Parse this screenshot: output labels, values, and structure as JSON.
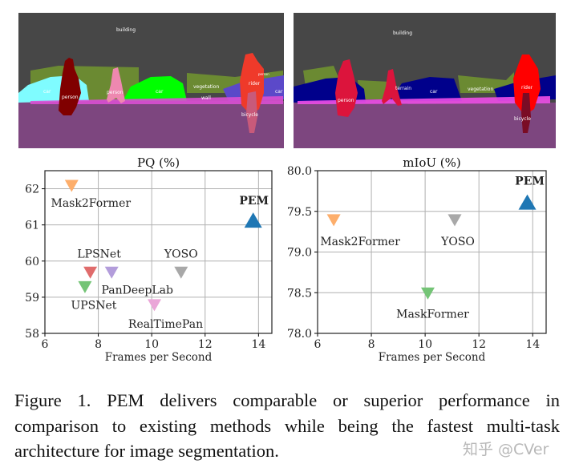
{
  "segmentation_images": {
    "left": {
      "labels": [
        "building",
        "car",
        "person",
        "person",
        "car",
        "vegetation",
        "wall",
        "rider",
        "person",
        "car",
        "bicycle"
      ]
    },
    "right": {
      "labels": [
        "building",
        "terrain",
        "car",
        "vegetation",
        "person",
        "rider",
        "bicycle"
      ]
    }
  },
  "chart_data": [
    {
      "type": "scatter",
      "title": "PQ (%)",
      "xlabel": "Frames per Second",
      "ylabel": "",
      "xlim": [
        6,
        14.5
      ],
      "ylim": [
        58,
        62.5
      ],
      "xticks": [
        "6",
        "8",
        "10",
        "12",
        "14"
      ],
      "yticks": [
        "58",
        "59",
        "60",
        "61",
        "62"
      ],
      "grid": true,
      "points": [
        {
          "name": "Mask2Former",
          "x": 7.0,
          "y": 62.1,
          "marker": "triangle-down",
          "color": "#fdae6b"
        },
        {
          "name": "PEM",
          "x": 13.8,
          "y": 61.1,
          "marker": "triangle-up",
          "color": "#1f77b4",
          "bold": true
        },
        {
          "name": "LPSNet",
          "x": 7.7,
          "y": 59.7,
          "marker": "triangle-down",
          "color": "#e06c6c"
        },
        {
          "name": "PanDeepLab",
          "x": 8.5,
          "y": 59.7,
          "marker": "triangle-down",
          "color": "#b39ddb"
        },
        {
          "name": "YOSO",
          "x": 11.1,
          "y": 59.7,
          "marker": "triangle-down",
          "color": "#a8a8a8"
        },
        {
          "name": "UPSNet",
          "x": 7.5,
          "y": 59.3,
          "marker": "triangle-down",
          "color": "#74c476"
        },
        {
          "name": "RealTimePan",
          "x": 10.1,
          "y": 58.8,
          "marker": "triangle-down",
          "color": "#eaa6d8"
        }
      ]
    },
    {
      "type": "scatter",
      "title": "mIoU (%)",
      "xlabel": "Frames per Second",
      "ylabel": "",
      "xlim": [
        6,
        14.5
      ],
      "ylim": [
        78.0,
        80.0
      ],
      "xticks": [
        "6",
        "8",
        "10",
        "12",
        "14"
      ],
      "yticks": [
        "78.0",
        "78.5",
        "79.0",
        "79.5",
        "80.0"
      ],
      "grid": true,
      "points": [
        {
          "name": "Mask2Former",
          "x": 6.6,
          "y": 79.4,
          "marker": "triangle-down",
          "color": "#fdae6b"
        },
        {
          "name": "YOSO",
          "x": 11.1,
          "y": 79.4,
          "marker": "triangle-down",
          "color": "#a8a8a8"
        },
        {
          "name": "MaskFormer",
          "x": 10.1,
          "y": 78.5,
          "marker": "triangle-down",
          "color": "#74c476"
        },
        {
          "name": "PEM",
          "x": 13.8,
          "y": 79.6,
          "marker": "triangle-up",
          "color": "#1f77b4",
          "bold": true
        }
      ]
    }
  ],
  "caption": {
    "lines": [
      "Figure 1.  PEM delivers comparable or superior performance in",
      "comparison to existing methods while being the fastest multi-task",
      "architecture for image segmentation."
    ]
  },
  "watermark": "知乎 @CVer"
}
